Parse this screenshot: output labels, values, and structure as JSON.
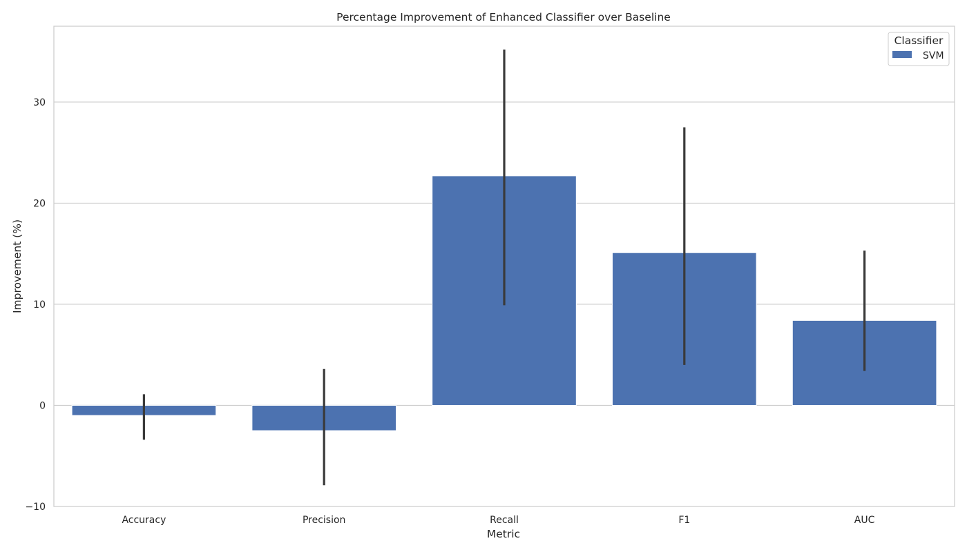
{
  "chart_data": {
    "type": "bar",
    "title": "Percentage Improvement of Enhanced Classifier over Baseline",
    "xlabel": "Metric",
    "ylabel": "Improvement (%)",
    "categories": [
      "Accuracy",
      "Precision",
      "Recall",
      "F1",
      "AUC"
    ],
    "series": [
      {
        "name": "SVM",
        "color": "#4c72b0",
        "values": [
          -1.0,
          -2.5,
          22.7,
          15.1,
          8.4
        ],
        "error_low": [
          -3.4,
          -7.9,
          9.9,
          4.0,
          3.4
        ],
        "error_high": [
          1.1,
          3.6,
          35.2,
          27.5,
          15.3
        ]
      }
    ],
    "ylim": [
      -10,
      37.5
    ],
    "yticks": [
      -10,
      0,
      10,
      20,
      30
    ],
    "ytick_labels": [
      "−10",
      "0",
      "10",
      "20",
      "30"
    ],
    "grid": "horizontal",
    "legend": {
      "title": "Classifier",
      "placement": "top-right"
    }
  }
}
